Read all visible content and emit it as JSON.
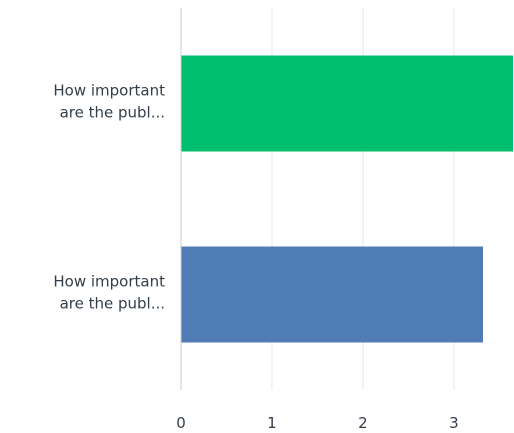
{
  "chart_data": {
    "type": "bar",
    "orientation": "horizontal",
    "categories": [
      [
        "How important",
        "are the publ..."
      ],
      [
        "How important",
        "are the publ..."
      ]
    ],
    "values": [
      3.65,
      3.32
    ],
    "bar_colors": [
      "#00bf6f",
      "#507cb6"
    ],
    "x_ticks": [
      "0",
      "1",
      "2",
      "3"
    ],
    "xlim": [
      0,
      3.65
    ],
    "grid": true,
    "title": "",
    "xlabel": "",
    "ylabel": ""
  }
}
